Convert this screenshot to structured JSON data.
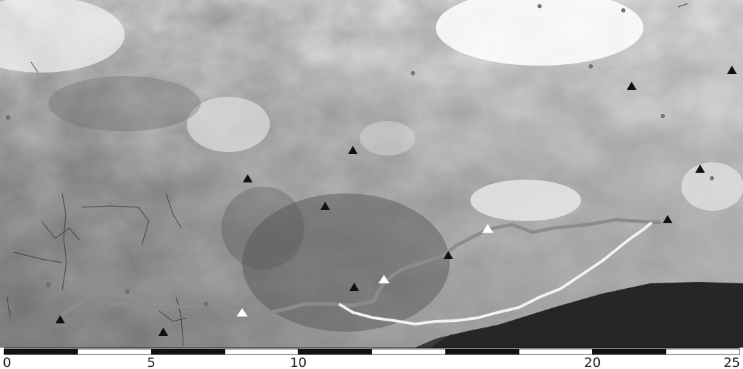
{
  "map": {
    "scale_bar": {
      "labels": [
        "0",
        "5",
        "10",
        "20",
        "25"
      ],
      "label_values": [
        0,
        5,
        10,
        20,
        25
      ],
      "max_value": 25
    },
    "legend_colors": {
      "filled_triangle": "#111111",
      "open_triangle": "#ffffff",
      "route_gray": "#8c8c8c",
      "route_white": "#f2f2f2",
      "water": "#262626"
    }
  }
}
